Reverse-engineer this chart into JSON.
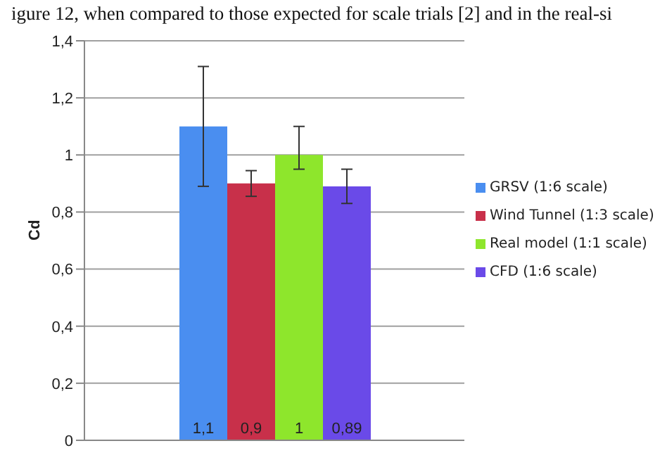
{
  "chart_data": {
    "type": "bar",
    "annotations": [
      "igure 12, when compared to those expected for scale trials [2] and in the real-si"
    ],
    "ylabel": "Cd",
    "categories": [
      null
    ],
    "series": [
      {
        "name": "GRSV (1:6 scale)",
        "color": "#4a8ef0",
        "values": [
          1.1
        ],
        "errors": [
          [
            0.89,
            1.31
          ]
        ],
        "value_labels": [
          "1,1"
        ]
      },
      {
        "name": "Wind Tunnel (1:3 scale)",
        "color": "#c8304a",
        "values": [
          0.9
        ],
        "errors": [
          [
            0.855,
            0.945
          ]
        ],
        "value_labels": [
          "0,9"
        ]
      },
      {
        "name": "Real model (1:1 scale)",
        "color": "#8ee62c",
        "values": [
          1
        ],
        "errors": [
          [
            0.95,
            1.1
          ]
        ],
        "value_labels": [
          "1"
        ]
      },
      {
        "name": "CFD (1:6 scale)",
        "color": "#6a4ae8",
        "values": [
          0.89
        ],
        "errors": [
          [
            0.83,
            0.95
          ]
        ],
        "value_labels": [
          "0,89"
        ]
      }
    ],
    "ylim": [
      0,
      1.4
    ],
    "yticks": [
      {
        "value": 0,
        "label": "0"
      },
      {
        "value": 0.2,
        "label": "0,2"
      },
      {
        "value": 0.4,
        "label": "0,4"
      },
      {
        "value": 0.6,
        "label": "0,6"
      },
      {
        "value": 0.8,
        "label": "0,8"
      },
      {
        "value": 1,
        "label": "1"
      },
      {
        "value": 1.2,
        "label": "1,2"
      },
      {
        "value": 1.4,
        "label": "1,4"
      }
    ],
    "grid": "y",
    "legend": "right"
  }
}
